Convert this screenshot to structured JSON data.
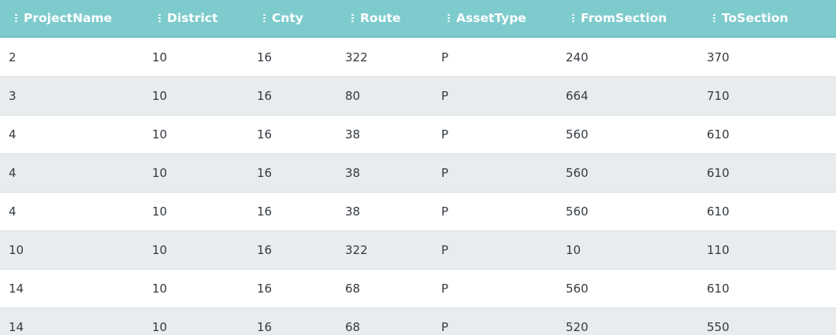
{
  "columns": [
    {
      "label": "ProjectName",
      "sorted": true
    },
    {
      "label": "District",
      "sorted": false
    },
    {
      "label": "Cnty",
      "sorted": false
    },
    {
      "label": "Route",
      "sorted": false
    },
    {
      "label": "AssetType",
      "sorted": false
    },
    {
      "label": "FromSection",
      "sorted": false
    },
    {
      "label": "ToSection",
      "sorted": false
    }
  ],
  "rows": [
    [
      "2",
      "10",
      "16",
      "322",
      "P",
      "240",
      "370"
    ],
    [
      "3",
      "10",
      "16",
      "80",
      "P",
      "664",
      "710"
    ],
    [
      "4",
      "10",
      "16",
      "38",
      "P",
      "560",
      "610"
    ],
    [
      "4",
      "10",
      "16",
      "38",
      "P",
      "560",
      "610"
    ],
    [
      "4",
      "10",
      "16",
      "38",
      "P",
      "560",
      "610"
    ],
    [
      "10",
      "10",
      "16",
      "322",
      "P",
      "10",
      "110"
    ],
    [
      "14",
      "10",
      "16",
      "68",
      "P",
      "560",
      "610"
    ],
    [
      "14",
      "10",
      "16",
      "68",
      "P",
      "520",
      "550"
    ]
  ],
  "colors": {
    "header_bg": "#7ecbcd",
    "row_alt_bg": "#e8ecef",
    "sort_active": "#3f5a5c"
  }
}
